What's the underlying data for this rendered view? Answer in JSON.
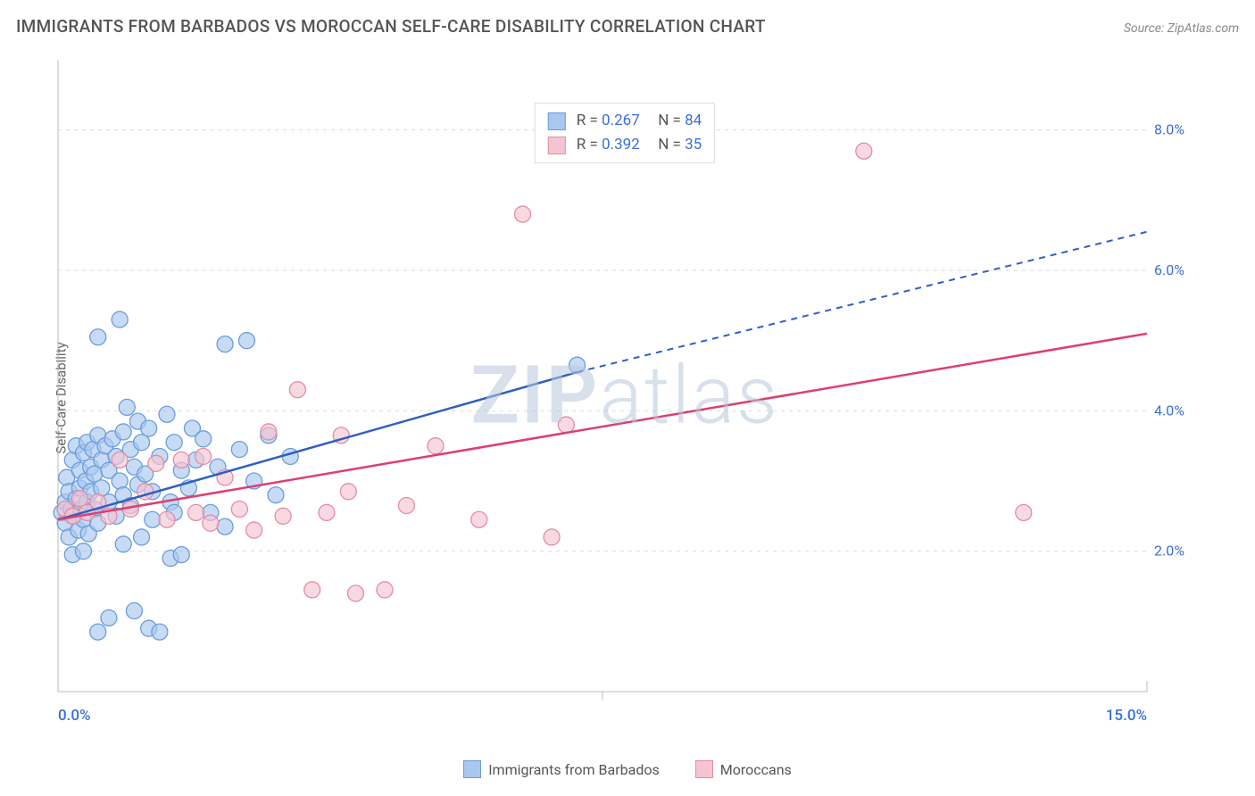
{
  "title": "IMMIGRANTS FROM BARBADOS VS MOROCCAN SELF-CARE DISABILITY CORRELATION CHART",
  "source_label": "Source: ",
  "source_value": "ZipAtlas.com",
  "y_axis_label": "Self-Care Disability",
  "watermark": {
    "part1": "ZIP",
    "part2": "atlas"
  },
  "chart": {
    "type": "scatter",
    "background_color": "#ffffff",
    "grid_color": "#dddddd",
    "axis_line_color": "#bbbbbb",
    "xlim": [
      0,
      15
    ],
    "ylim": [
      0,
      9
    ],
    "x_endpoints": {
      "min_label": "0.0%",
      "max_label": "15.0%"
    },
    "y_ticks": [
      {
        "value": 2.0,
        "label": "2.0%"
      },
      {
        "value": 4.0,
        "label": "4.0%"
      },
      {
        "value": 6.0,
        "label": "6.0%"
      },
      {
        "value": 8.0,
        "label": "8.0%"
      }
    ],
    "series": [
      {
        "id": "barbados",
        "label": "Immigrants from Barbados",
        "fill_color": "#a9c7ef",
        "stroke_color": "#6a9ddb",
        "line_color": "#2f5fc2",
        "opacity": 0.65,
        "marker_radius": 9,
        "R_label": "R = ",
        "R_value": "0.267",
        "N_label": "N = ",
        "N_value": "84",
        "trend": {
          "solid": {
            "x1": 0.0,
            "y1": 2.45,
            "x2": 7.15,
            "y2": 4.55
          },
          "dashed": {
            "x1": 7.15,
            "y1": 4.55,
            "x2": 15.0,
            "y2": 6.55
          }
        },
        "points": [
          [
            0.05,
            2.55
          ],
          [
            0.1,
            2.7
          ],
          [
            0.1,
            2.4
          ],
          [
            0.12,
            3.05
          ],
          [
            0.15,
            2.2
          ],
          [
            0.15,
            2.85
          ],
          [
            0.18,
            2.6
          ],
          [
            0.2,
            1.95
          ],
          [
            0.2,
            3.3
          ],
          [
            0.22,
            2.5
          ],
          [
            0.25,
            2.75
          ],
          [
            0.25,
            3.5
          ],
          [
            0.28,
            2.3
          ],
          [
            0.3,
            2.9
          ],
          [
            0.3,
            3.15
          ],
          [
            0.32,
            2.6
          ],
          [
            0.35,
            3.4
          ],
          [
            0.35,
            2.45
          ],
          [
            0.38,
            3.0
          ],
          [
            0.4,
            2.7
          ],
          [
            0.4,
            3.55
          ],
          [
            0.42,
            2.25
          ],
          [
            0.45,
            3.2
          ],
          [
            0.45,
            2.85
          ],
          [
            0.48,
            3.45
          ],
          [
            0.5,
            2.6
          ],
          [
            0.5,
            3.1
          ],
          [
            0.55,
            3.65
          ],
          [
            0.55,
            2.4
          ],
          [
            0.6,
            3.3
          ],
          [
            0.6,
            2.9
          ],
          [
            0.65,
            3.5
          ],
          [
            0.7,
            2.7
          ],
          [
            0.7,
            3.15
          ],
          [
            0.75,
            3.6
          ],
          [
            0.8,
            2.5
          ],
          [
            0.8,
            3.35
          ],
          [
            0.85,
            3.0
          ],
          [
            0.9,
            3.7
          ],
          [
            0.9,
            2.8
          ],
          [
            0.95,
            4.05
          ],
          [
            1.0,
            3.45
          ],
          [
            1.0,
            2.65
          ],
          [
            1.05,
            3.2
          ],
          [
            1.1,
            3.85
          ],
          [
            1.1,
            2.95
          ],
          [
            1.15,
            3.55
          ],
          [
            1.2,
            3.1
          ],
          [
            1.25,
            3.75
          ],
          [
            1.3,
            2.85
          ],
          [
            0.55,
            5.05
          ],
          [
            0.85,
            5.3
          ],
          [
            1.4,
            3.35
          ],
          [
            1.5,
            3.95
          ],
          [
            1.55,
            2.7
          ],
          [
            1.6,
            3.55
          ],
          [
            1.7,
            3.15
          ],
          [
            1.8,
            2.9
          ],
          [
            1.85,
            3.75
          ],
          [
            1.9,
            3.3
          ],
          [
            2.0,
            3.6
          ],
          [
            2.1,
            2.55
          ],
          [
            2.2,
            3.2
          ],
          [
            2.3,
            4.95
          ],
          [
            2.5,
            3.45
          ],
          [
            2.6,
            5.0
          ],
          [
            2.7,
            3.0
          ],
          [
            2.9,
            3.65
          ],
          [
            3.0,
            2.8
          ],
          [
            3.2,
            3.35
          ],
          [
            0.7,
            1.05
          ],
          [
            1.05,
            1.15
          ],
          [
            1.25,
            0.9
          ],
          [
            1.4,
            0.85
          ],
          [
            1.55,
            1.9
          ],
          [
            1.7,
            1.95
          ],
          [
            0.55,
            0.85
          ],
          [
            0.35,
            2.0
          ],
          [
            0.9,
            2.1
          ],
          [
            1.15,
            2.2
          ],
          [
            1.3,
            2.45
          ],
          [
            1.6,
            2.55
          ],
          [
            2.3,
            2.35
          ],
          [
            7.15,
            4.65
          ]
        ]
      },
      {
        "id": "moroccans",
        "label": "Moroccans",
        "fill_color": "#f6c4d1",
        "stroke_color": "#e48ca4",
        "line_color": "#de3e70",
        "opacity": 0.65,
        "marker_radius": 9,
        "R_label": "R = ",
        "R_value": "0.392",
        "N_label": "N = ",
        "N_value": "35",
        "trend": {
          "solid": {
            "x1": 0.0,
            "y1": 2.45,
            "x2": 15.0,
            "y2": 5.1
          },
          "dashed": null
        },
        "points": [
          [
            0.1,
            2.6
          ],
          [
            0.2,
            2.5
          ],
          [
            0.3,
            2.75
          ],
          [
            0.4,
            2.55
          ],
          [
            0.55,
            2.7
          ],
          [
            0.7,
            2.5
          ],
          [
            0.85,
            3.3
          ],
          [
            1.0,
            2.6
          ],
          [
            1.2,
            2.85
          ],
          [
            1.35,
            3.25
          ],
          [
            1.5,
            2.45
          ],
          [
            1.7,
            3.3
          ],
          [
            1.9,
            2.55
          ],
          [
            2.1,
            2.4
          ],
          [
            2.3,
            3.05
          ],
          [
            2.5,
            2.6
          ],
          [
            2.7,
            2.3
          ],
          [
            2.9,
            3.7
          ],
          [
            3.1,
            2.5
          ],
          [
            3.3,
            4.3
          ],
          [
            3.5,
            1.45
          ],
          [
            3.7,
            2.55
          ],
          [
            3.9,
            3.65
          ],
          [
            4.1,
            1.4
          ],
          [
            4.5,
            1.45
          ],
          [
            4.8,
            2.65
          ],
          [
            5.2,
            3.5
          ],
          [
            5.8,
            2.45
          ],
          [
            6.4,
            6.8
          ],
          [
            6.8,
            2.2
          ],
          [
            7.0,
            3.8
          ],
          [
            11.1,
            7.7
          ],
          [
            13.3,
            2.55
          ],
          [
            4.0,
            2.85
          ],
          [
            2.0,
            3.35
          ]
        ]
      }
    ]
  },
  "bottom_legend": [
    {
      "series": "barbados"
    },
    {
      "series": "moroccans"
    }
  ]
}
